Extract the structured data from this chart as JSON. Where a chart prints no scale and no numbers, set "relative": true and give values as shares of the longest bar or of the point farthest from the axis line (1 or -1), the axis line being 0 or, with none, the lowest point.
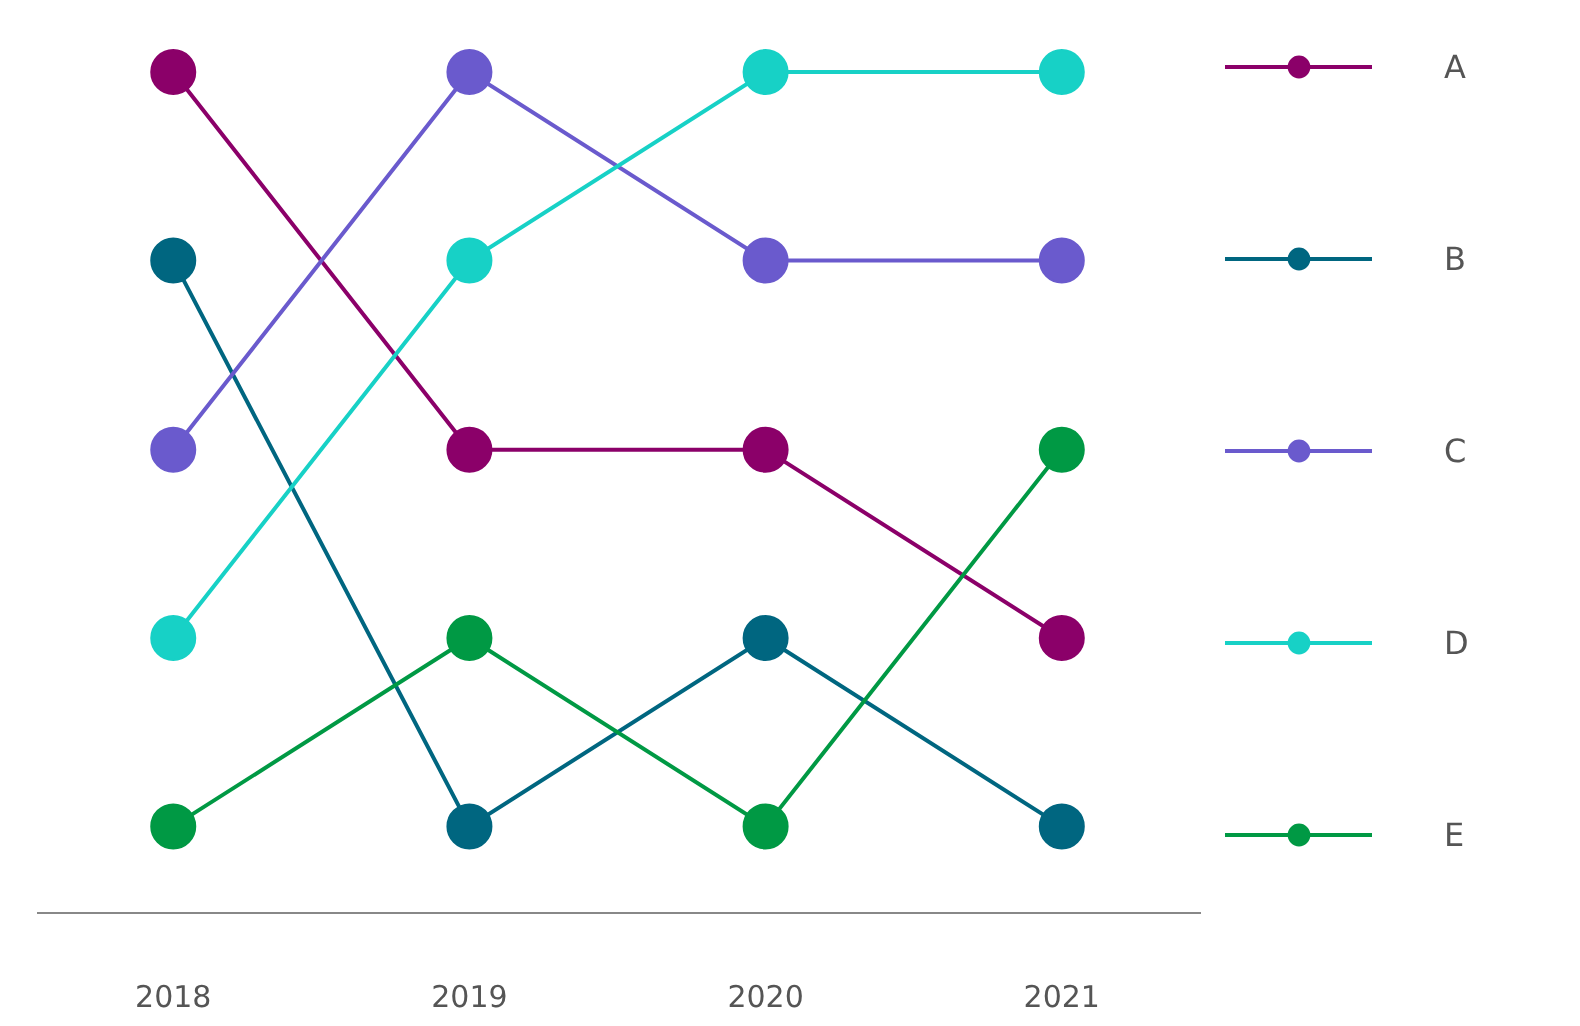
{
  "chart_data": {
    "type": "line",
    "categories": [
      "2018",
      "2019",
      "2020",
      "2021"
    ],
    "relative": true,
    "marker": "circle",
    "legend": "right",
    "grid": false,
    "series": [
      {
        "name": "A",
        "color": "#8b0069",
        "values": [
          1,
          0.551,
          0.551,
          0.327
        ]
      },
      {
        "name": "B",
        "color": "#006680",
        "values": [
          0.776,
          0.103,
          0.327,
          0.103
        ]
      },
      {
        "name": "C",
        "color": "#6a5acd",
        "values": [
          0.551,
          1,
          0.776,
          0.776
        ]
      },
      {
        "name": "D",
        "color": "#17d1c6",
        "values": [
          0.327,
          0.776,
          1,
          1
        ]
      },
      {
        "name": "E",
        "color": "#009944",
        "values": [
          0.103,
          0.327,
          0.103,
          0.551
        ]
      }
    ]
  }
}
